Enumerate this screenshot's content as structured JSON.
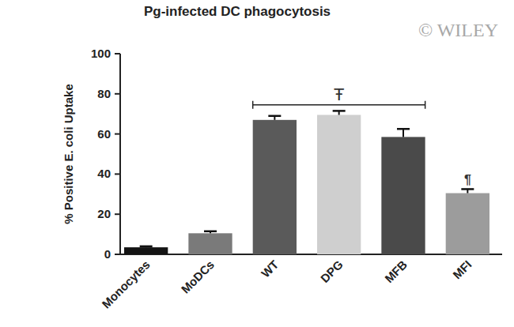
{
  "chart_data": {
    "type": "bar",
    "title": "Pg-infected DC phagocytosis",
    "watermark": "© WILEY",
    "y_label": "% Positive E. coli Uptake",
    "categories": [
      "Monocytes",
      "MoDCs",
      "WT",
      "DPG",
      "MFB",
      "MFI"
    ],
    "values": [
      3.5,
      10.5,
      67,
      69.5,
      58.5,
      30.5
    ],
    "errors": [
      0.5,
      1,
      2,
      2,
      4,
      2
    ],
    "colors": [
      "#141414",
      "#7a7a7a",
      "#5a5a5a",
      "#cfcfcf",
      "#4a4a4a",
      "#9c9c9c"
    ],
    "ylim": [
      0,
      100
    ],
    "yticks": [
      0,
      20,
      40,
      60,
      80,
      100
    ],
    "grid": false,
    "annotations": [
      {
        "text": "Ŧ",
        "categories": [
          "WT",
          "MFB"
        ]
      },
      {
        "text": "¶",
        "categories": [
          "MFI"
        ]
      }
    ]
  }
}
